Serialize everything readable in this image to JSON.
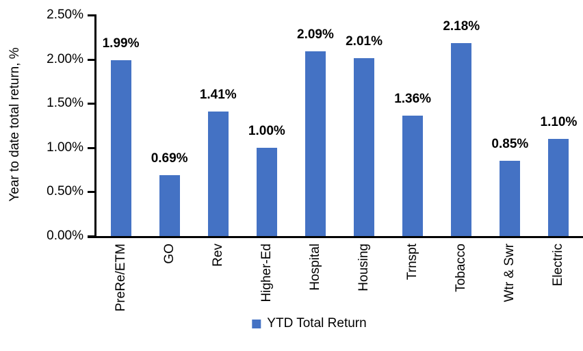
{
  "chart_data": {
    "type": "bar",
    "title": "",
    "categories": [
      "PreRe/ETM",
      "GO",
      "Rev",
      "Higher-Ed",
      "Hospital",
      "Housing",
      "Trnspt",
      "Tobacco",
      "Wtr & Swr",
      "Electric"
    ],
    "series": [
      {
        "name": "YTD Total Return",
        "values": [
          1.99,
          0.69,
          1.41,
          1.0,
          2.09,
          2.01,
          1.36,
          2.18,
          0.85,
          1.1
        ]
      }
    ],
    "value_labels": [
      "1.99%",
      "0.69%",
      "1.41%",
      "1.00%",
      "2.09%",
      "2.01%",
      "1.36%",
      "2.18%",
      "0.85%",
      "1.10%"
    ],
    "xlabel": "",
    "ylabel": "Year to date total return, %",
    "ylim": [
      0,
      2.5
    ],
    "ytick_step": 0.5,
    "ytick_labels": [
      "0.00%",
      "0.50%",
      "1.00%",
      "1.50%",
      "2.00%",
      "2.50%"
    ],
    "grid": false,
    "legend_position": "bottom",
    "bar_color": "#4472C4",
    "axis_color": "#000000",
    "text_color": "#000000"
  }
}
